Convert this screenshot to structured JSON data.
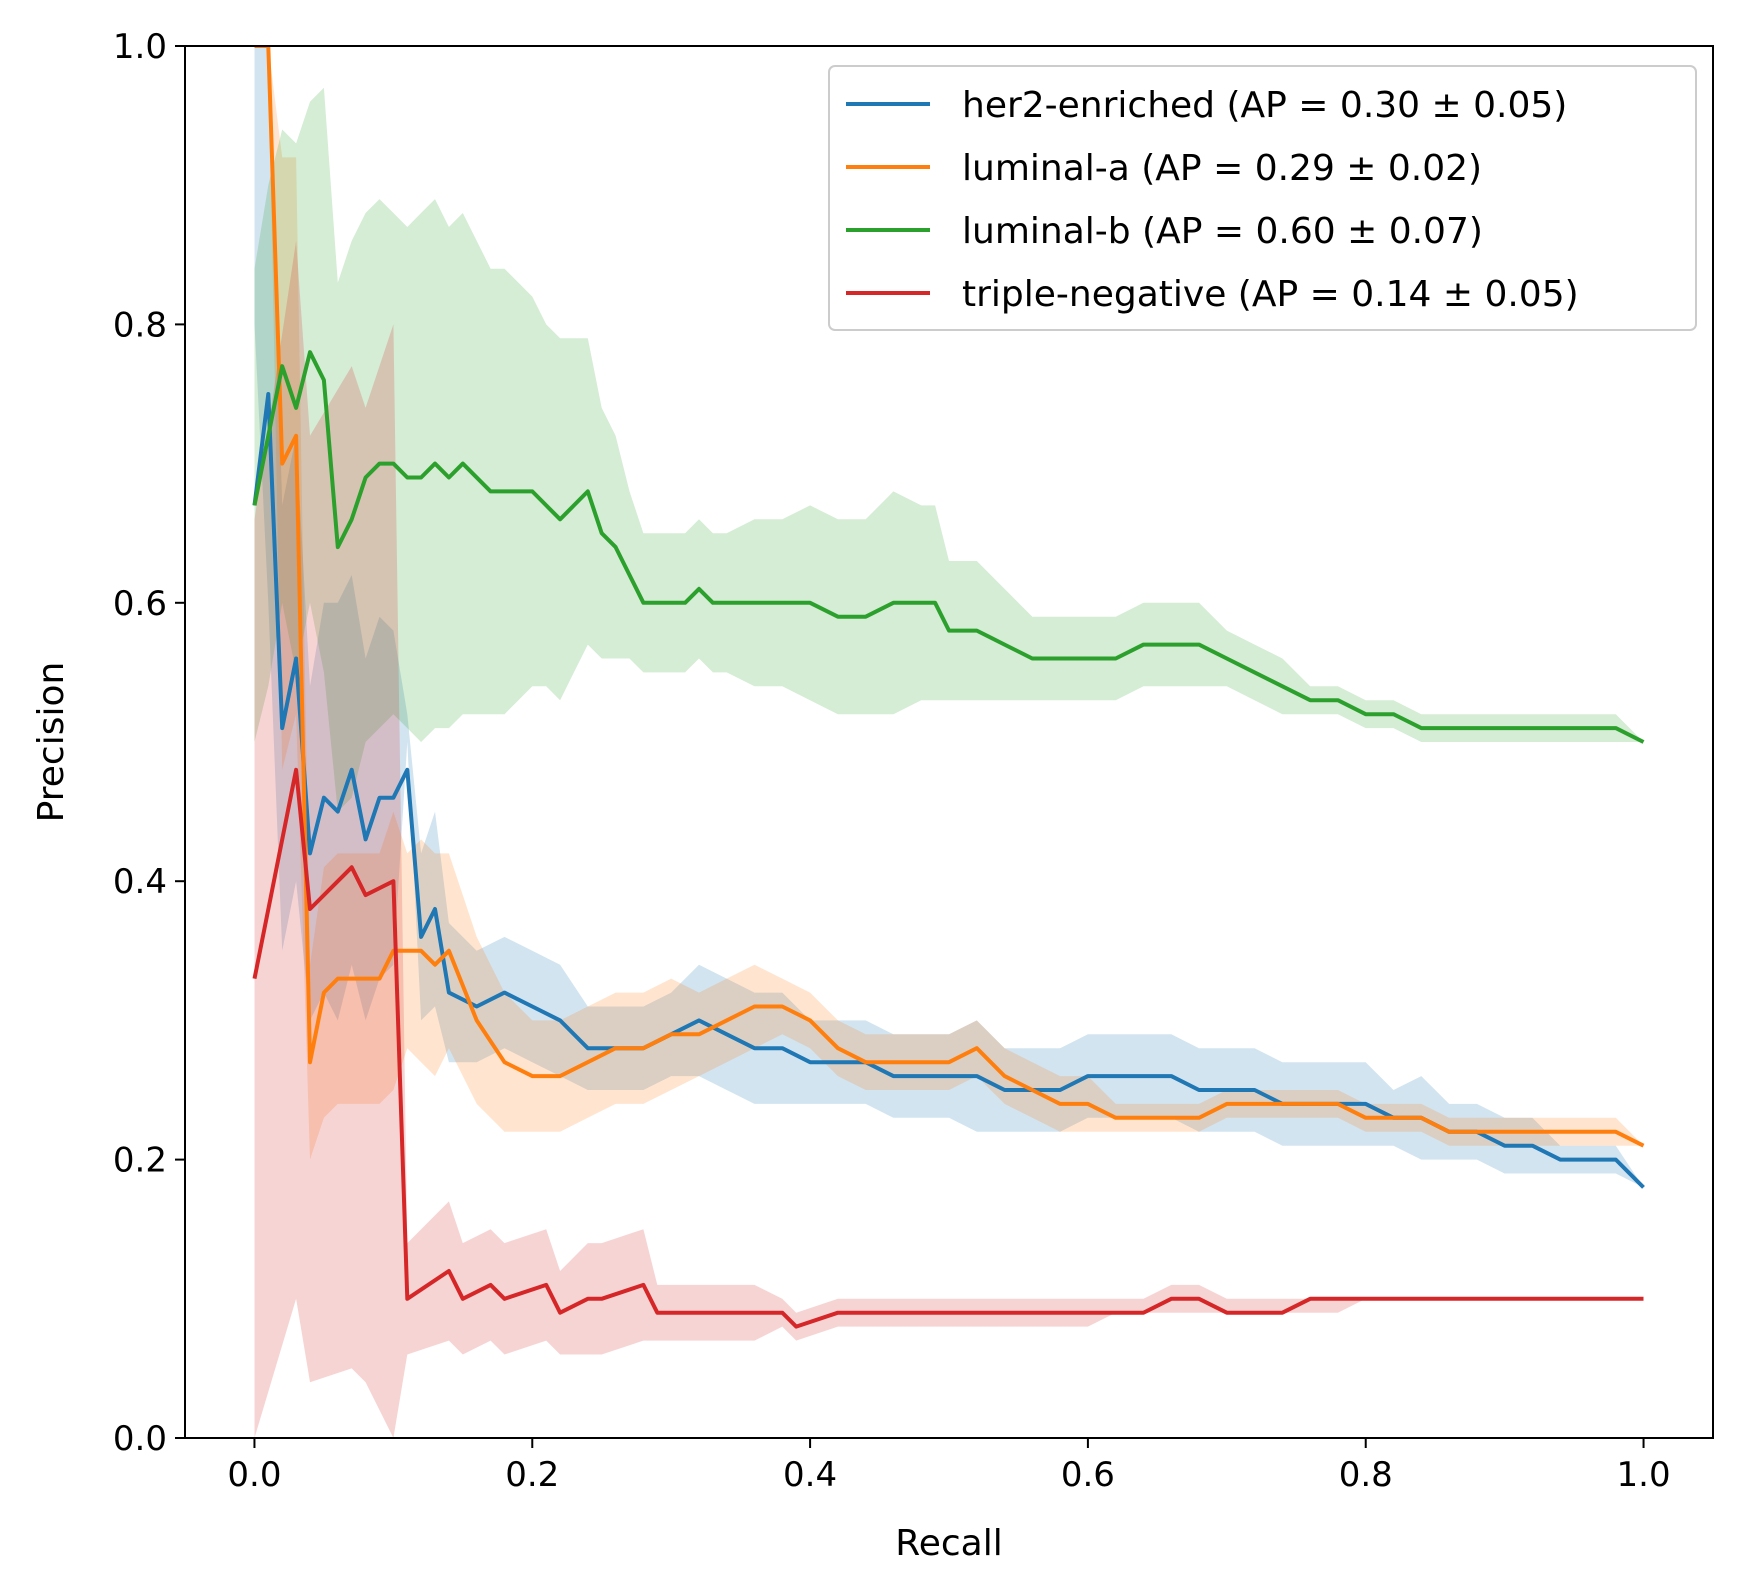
{
  "chart_data": {
    "type": "line",
    "title": "",
    "xlabel": "Recall",
    "ylabel": "Precision",
    "xlim": [
      -0.05,
      1.05
    ],
    "ylim": [
      0.0,
      1.0
    ],
    "xticks": [
      "0.0",
      "0.2",
      "0.4",
      "0.6",
      "0.8",
      "1.0"
    ],
    "yticks": [
      "0.0",
      "0.2",
      "0.4",
      "0.6",
      "0.8",
      "1.0"
    ],
    "grid": false,
    "legend_position": "top-right",
    "shaded_band": "mean ± std",
    "series": [
      {
        "name": "her2-enriched (AP = 0.30 ± 0.05)",
        "color": "#1f77b4",
        "x": [
          0.0,
          0.01,
          0.02,
          0.03,
          0.04,
          0.05,
          0.06,
          0.07,
          0.08,
          0.09,
          0.1,
          0.11,
          0.12,
          0.13,
          0.14,
          0.16,
          0.18,
          0.2,
          0.22,
          0.24,
          0.26,
          0.28,
          0.3,
          0.32,
          0.34,
          0.36,
          0.38,
          0.4,
          0.42,
          0.44,
          0.46,
          0.48,
          0.5,
          0.52,
          0.54,
          0.56,
          0.58,
          0.6,
          0.62,
          0.64,
          0.66,
          0.68,
          0.7,
          0.72,
          0.74,
          0.76,
          0.78,
          0.8,
          0.82,
          0.84,
          0.86,
          0.88,
          0.9,
          0.92,
          0.94,
          0.96,
          0.98,
          1.0
        ],
        "y": [
          0.67,
          0.75,
          0.51,
          0.56,
          0.42,
          0.46,
          0.45,
          0.48,
          0.43,
          0.46,
          0.46,
          0.48,
          0.36,
          0.38,
          0.32,
          0.31,
          0.32,
          0.31,
          0.3,
          0.28,
          0.28,
          0.28,
          0.29,
          0.3,
          0.29,
          0.28,
          0.28,
          0.27,
          0.27,
          0.27,
          0.26,
          0.26,
          0.26,
          0.26,
          0.25,
          0.25,
          0.25,
          0.26,
          0.26,
          0.26,
          0.26,
          0.25,
          0.25,
          0.25,
          0.24,
          0.24,
          0.24,
          0.24,
          0.23,
          0.23,
          0.22,
          0.22,
          0.21,
          0.21,
          0.2,
          0.2,
          0.2,
          0.18
        ],
        "lower": [
          0.8,
          0.6,
          0.35,
          0.4,
          0.3,
          0.32,
          0.3,
          0.34,
          0.3,
          0.33,
          0.34,
          0.5,
          0.3,
          0.31,
          0.27,
          0.27,
          0.28,
          0.27,
          0.26,
          0.25,
          0.25,
          0.25,
          0.26,
          0.26,
          0.25,
          0.24,
          0.24,
          0.24,
          0.24,
          0.24,
          0.23,
          0.23,
          0.23,
          0.22,
          0.22,
          0.22,
          0.22,
          0.23,
          0.23,
          0.23,
          0.23,
          0.22,
          0.22,
          0.22,
          0.21,
          0.21,
          0.21,
          0.21,
          0.21,
          0.2,
          0.2,
          0.2,
          0.19,
          0.19,
          0.19,
          0.19,
          0.19,
          0.18
        ],
        "upper": [
          1.0,
          1.0,
          0.67,
          0.72,
          0.54,
          0.6,
          0.6,
          0.62,
          0.56,
          0.59,
          0.58,
          0.52,
          0.42,
          0.45,
          0.37,
          0.35,
          0.36,
          0.35,
          0.34,
          0.31,
          0.31,
          0.31,
          0.32,
          0.34,
          0.33,
          0.32,
          0.32,
          0.3,
          0.3,
          0.3,
          0.29,
          0.29,
          0.29,
          0.3,
          0.28,
          0.28,
          0.28,
          0.29,
          0.29,
          0.29,
          0.29,
          0.28,
          0.28,
          0.28,
          0.27,
          0.27,
          0.27,
          0.27,
          0.25,
          0.26,
          0.24,
          0.24,
          0.23,
          0.23,
          0.21,
          0.21,
          0.21,
          0.18
        ]
      },
      {
        "name": "luminal-a (AP = 0.29 ± 0.02)",
        "color": "#ff7f0e",
        "x": [
          0.0,
          0.01,
          0.02,
          0.03,
          0.04,
          0.05,
          0.06,
          0.07,
          0.08,
          0.09,
          0.1,
          0.11,
          0.12,
          0.13,
          0.14,
          0.16,
          0.18,
          0.2,
          0.22,
          0.24,
          0.26,
          0.28,
          0.3,
          0.32,
          0.34,
          0.36,
          0.38,
          0.4,
          0.42,
          0.44,
          0.46,
          0.48,
          0.5,
          0.52,
          0.54,
          0.56,
          0.58,
          0.6,
          0.62,
          0.64,
          0.66,
          0.68,
          0.7,
          0.72,
          0.74,
          0.76,
          0.78,
          0.8,
          0.82,
          0.84,
          0.86,
          0.88,
          0.9,
          0.92,
          0.94,
          0.96,
          0.98,
          1.0
        ],
        "y": [
          1.0,
          1.0,
          0.7,
          0.72,
          0.27,
          0.32,
          0.33,
          0.33,
          0.33,
          0.33,
          0.35,
          0.35,
          0.35,
          0.34,
          0.35,
          0.3,
          0.27,
          0.26,
          0.26,
          0.27,
          0.28,
          0.28,
          0.29,
          0.29,
          0.3,
          0.31,
          0.31,
          0.3,
          0.28,
          0.27,
          0.27,
          0.27,
          0.27,
          0.28,
          0.26,
          0.25,
          0.24,
          0.24,
          0.23,
          0.23,
          0.23,
          0.23,
          0.24,
          0.24,
          0.24,
          0.24,
          0.24,
          0.23,
          0.23,
          0.23,
          0.22,
          0.22,
          0.22,
          0.22,
          0.22,
          0.22,
          0.22,
          0.21
        ],
        "lower": [
          1.0,
          1.0,
          0.48,
          0.52,
          0.2,
          0.23,
          0.24,
          0.24,
          0.24,
          0.24,
          0.25,
          0.28,
          0.27,
          0.26,
          0.28,
          0.24,
          0.22,
          0.22,
          0.22,
          0.23,
          0.24,
          0.24,
          0.25,
          0.26,
          0.27,
          0.28,
          0.29,
          0.28,
          0.26,
          0.25,
          0.25,
          0.25,
          0.25,
          0.26,
          0.24,
          0.23,
          0.22,
          0.22,
          0.22,
          0.22,
          0.22,
          0.22,
          0.23,
          0.23,
          0.23,
          0.23,
          0.23,
          0.22,
          0.22,
          0.22,
          0.21,
          0.21,
          0.21,
          0.21,
          0.21,
          0.21,
          0.21,
          0.21
        ],
        "upper": [
          1.0,
          1.0,
          0.92,
          0.92,
          0.34,
          0.41,
          0.42,
          0.42,
          0.42,
          0.42,
          0.45,
          0.42,
          0.43,
          0.42,
          0.42,
          0.36,
          0.32,
          0.3,
          0.3,
          0.31,
          0.32,
          0.32,
          0.33,
          0.32,
          0.33,
          0.34,
          0.33,
          0.32,
          0.3,
          0.29,
          0.29,
          0.29,
          0.29,
          0.3,
          0.28,
          0.27,
          0.26,
          0.26,
          0.24,
          0.24,
          0.24,
          0.24,
          0.25,
          0.25,
          0.25,
          0.25,
          0.25,
          0.24,
          0.24,
          0.24,
          0.23,
          0.23,
          0.23,
          0.23,
          0.23,
          0.23,
          0.23,
          0.21
        ]
      },
      {
        "name": "luminal-b (AP = 0.60 ± 0.07)",
        "color": "#2ca02c",
        "x": [
          0.0,
          0.01,
          0.02,
          0.03,
          0.04,
          0.05,
          0.06,
          0.07,
          0.08,
          0.09,
          0.1,
          0.11,
          0.12,
          0.13,
          0.14,
          0.15,
          0.17,
          0.18,
          0.19,
          0.2,
          0.21,
          0.22,
          0.23,
          0.24,
          0.25,
          0.26,
          0.27,
          0.28,
          0.29,
          0.3,
          0.31,
          0.32,
          0.33,
          0.34,
          0.36,
          0.38,
          0.4,
          0.42,
          0.44,
          0.46,
          0.48,
          0.49,
          0.5,
          0.52,
          0.54,
          0.56,
          0.58,
          0.6,
          0.62,
          0.64,
          0.66,
          0.68,
          0.7,
          0.72,
          0.74,
          0.76,
          0.78,
          0.8,
          0.82,
          0.84,
          0.86,
          0.88,
          0.9,
          0.92,
          0.94,
          0.96,
          0.98,
          1.0
        ],
        "y": [
          0.67,
          0.72,
          0.77,
          0.74,
          0.78,
          0.76,
          0.64,
          0.66,
          0.69,
          0.7,
          0.7,
          0.69,
          0.69,
          0.7,
          0.69,
          0.7,
          0.68,
          0.68,
          0.68,
          0.68,
          0.67,
          0.66,
          0.67,
          0.68,
          0.65,
          0.64,
          0.62,
          0.6,
          0.6,
          0.6,
          0.6,
          0.61,
          0.6,
          0.6,
          0.6,
          0.6,
          0.6,
          0.59,
          0.59,
          0.6,
          0.6,
          0.6,
          0.58,
          0.58,
          0.57,
          0.56,
          0.56,
          0.56,
          0.56,
          0.57,
          0.57,
          0.57,
          0.56,
          0.55,
          0.54,
          0.53,
          0.53,
          0.52,
          0.52,
          0.51,
          0.51,
          0.51,
          0.51,
          0.51,
          0.51,
          0.51,
          0.51,
          0.5
        ],
        "lower": [
          0.5,
          0.54,
          0.6,
          0.55,
          0.6,
          0.55,
          0.45,
          0.46,
          0.5,
          0.51,
          0.52,
          0.51,
          0.5,
          0.51,
          0.51,
          0.52,
          0.52,
          0.52,
          0.53,
          0.54,
          0.54,
          0.53,
          0.55,
          0.57,
          0.56,
          0.56,
          0.56,
          0.55,
          0.55,
          0.55,
          0.55,
          0.56,
          0.55,
          0.55,
          0.54,
          0.54,
          0.53,
          0.52,
          0.52,
          0.52,
          0.53,
          0.53,
          0.53,
          0.53,
          0.53,
          0.53,
          0.53,
          0.53,
          0.53,
          0.54,
          0.54,
          0.54,
          0.54,
          0.53,
          0.52,
          0.52,
          0.52,
          0.51,
          0.51,
          0.5,
          0.5,
          0.5,
          0.5,
          0.5,
          0.5,
          0.5,
          0.5,
          0.5
        ],
        "upper": [
          0.84,
          0.9,
          0.94,
          0.93,
          0.96,
          0.97,
          0.83,
          0.86,
          0.88,
          0.89,
          0.88,
          0.87,
          0.88,
          0.89,
          0.87,
          0.88,
          0.84,
          0.84,
          0.83,
          0.82,
          0.8,
          0.79,
          0.79,
          0.79,
          0.74,
          0.72,
          0.68,
          0.65,
          0.65,
          0.65,
          0.65,
          0.66,
          0.65,
          0.65,
          0.66,
          0.66,
          0.67,
          0.66,
          0.66,
          0.68,
          0.67,
          0.67,
          0.63,
          0.63,
          0.61,
          0.59,
          0.59,
          0.59,
          0.59,
          0.6,
          0.6,
          0.6,
          0.58,
          0.57,
          0.56,
          0.54,
          0.54,
          0.53,
          0.53,
          0.52,
          0.52,
          0.52,
          0.52,
          0.52,
          0.52,
          0.52,
          0.52,
          0.5
        ]
      },
      {
        "name": "triple-negative (AP = 0.14 ± 0.05)",
        "color": "#d62728",
        "x": [
          0.0,
          0.03,
          0.04,
          0.07,
          0.08,
          0.1,
          0.11,
          0.14,
          0.15,
          0.17,
          0.18,
          0.21,
          0.22,
          0.24,
          0.25,
          0.28,
          0.29,
          0.31,
          0.32,
          0.35,
          0.36,
          0.38,
          0.39,
          0.42,
          0.43,
          0.45,
          0.46,
          0.49,
          0.5,
          0.52,
          0.54,
          0.56,
          0.58,
          0.6,
          0.62,
          0.64,
          0.66,
          0.68,
          0.7,
          0.72,
          0.74,
          0.76,
          0.78,
          0.8,
          0.82,
          0.84,
          0.86,
          0.88,
          0.9,
          0.92,
          0.94,
          0.96,
          0.98,
          1.0
        ],
        "y": [
          0.33,
          0.48,
          0.38,
          0.41,
          0.39,
          0.4,
          0.1,
          0.12,
          0.1,
          0.11,
          0.1,
          0.11,
          0.09,
          0.1,
          0.1,
          0.11,
          0.09,
          0.09,
          0.09,
          0.09,
          0.09,
          0.09,
          0.08,
          0.09,
          0.09,
          0.09,
          0.09,
          0.09,
          0.09,
          0.09,
          0.09,
          0.09,
          0.09,
          0.09,
          0.09,
          0.09,
          0.1,
          0.1,
          0.09,
          0.09,
          0.09,
          0.1,
          0.1,
          0.1,
          0.1,
          0.1,
          0.1,
          0.1,
          0.1,
          0.1,
          0.1,
          0.1,
          0.1,
          0.1
        ],
        "lower": [
          0.0,
          0.1,
          0.04,
          0.05,
          0.04,
          0.0,
          0.06,
          0.07,
          0.06,
          0.07,
          0.06,
          0.07,
          0.06,
          0.06,
          0.06,
          0.07,
          0.07,
          0.07,
          0.07,
          0.07,
          0.07,
          0.08,
          0.07,
          0.08,
          0.08,
          0.08,
          0.08,
          0.08,
          0.08,
          0.08,
          0.08,
          0.08,
          0.08,
          0.08,
          0.09,
          0.09,
          0.09,
          0.09,
          0.09,
          0.09,
          0.09,
          0.09,
          0.09,
          0.1,
          0.1,
          0.1,
          0.1,
          0.1,
          0.1,
          0.1,
          0.1,
          0.1,
          0.1,
          0.1
        ],
        "upper": [
          0.66,
          0.86,
          0.72,
          0.77,
          0.74,
          0.8,
          0.14,
          0.17,
          0.14,
          0.15,
          0.14,
          0.15,
          0.12,
          0.14,
          0.14,
          0.15,
          0.11,
          0.11,
          0.11,
          0.11,
          0.11,
          0.1,
          0.09,
          0.1,
          0.1,
          0.1,
          0.1,
          0.1,
          0.1,
          0.1,
          0.1,
          0.1,
          0.1,
          0.1,
          0.1,
          0.1,
          0.11,
          0.11,
          0.1,
          0.1,
          0.1,
          0.1,
          0.1,
          0.1,
          0.1,
          0.1,
          0.1,
          0.1,
          0.1,
          0.1,
          0.1,
          0.1,
          0.1,
          0.1
        ]
      }
    ]
  }
}
